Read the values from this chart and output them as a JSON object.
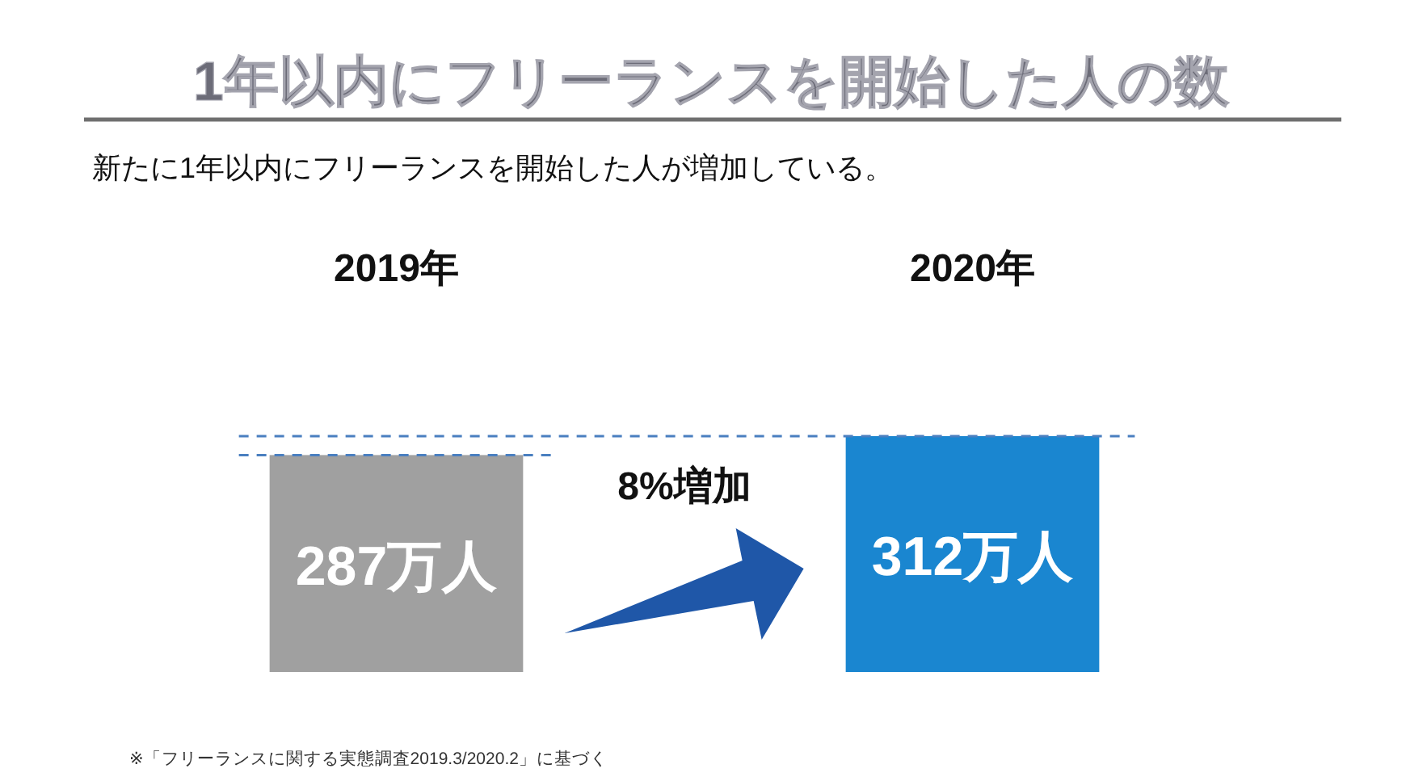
{
  "chart_data": {
    "type": "bar",
    "title": "1年以内にフリーランスを開始した人の数",
    "subtitle": "新たに1年以内にフリーランスを開始した人が増加している。",
    "categories": [
      "2019年",
      "2020年"
    ],
    "values": [
      287,
      312
    ],
    "colors": [
      "#a0a0a0",
      "#1a86d0"
    ],
    "value_labels": [
      "287万人",
      "312万人"
    ],
    "ref_lines": [
      {
        "axis": "y",
        "value": 312,
        "color": "#4a7fc0",
        "line_style": "dashed"
      },
      {
        "axis": "y",
        "value": 287,
        "color": "#4a7fc0",
        "line_style": "dashed"
      }
    ],
    "annotations": [
      "8%増加",
      "※「フリーランスに関する実態調査2019.3/2020.2」に基づく"
    ]
  }
}
